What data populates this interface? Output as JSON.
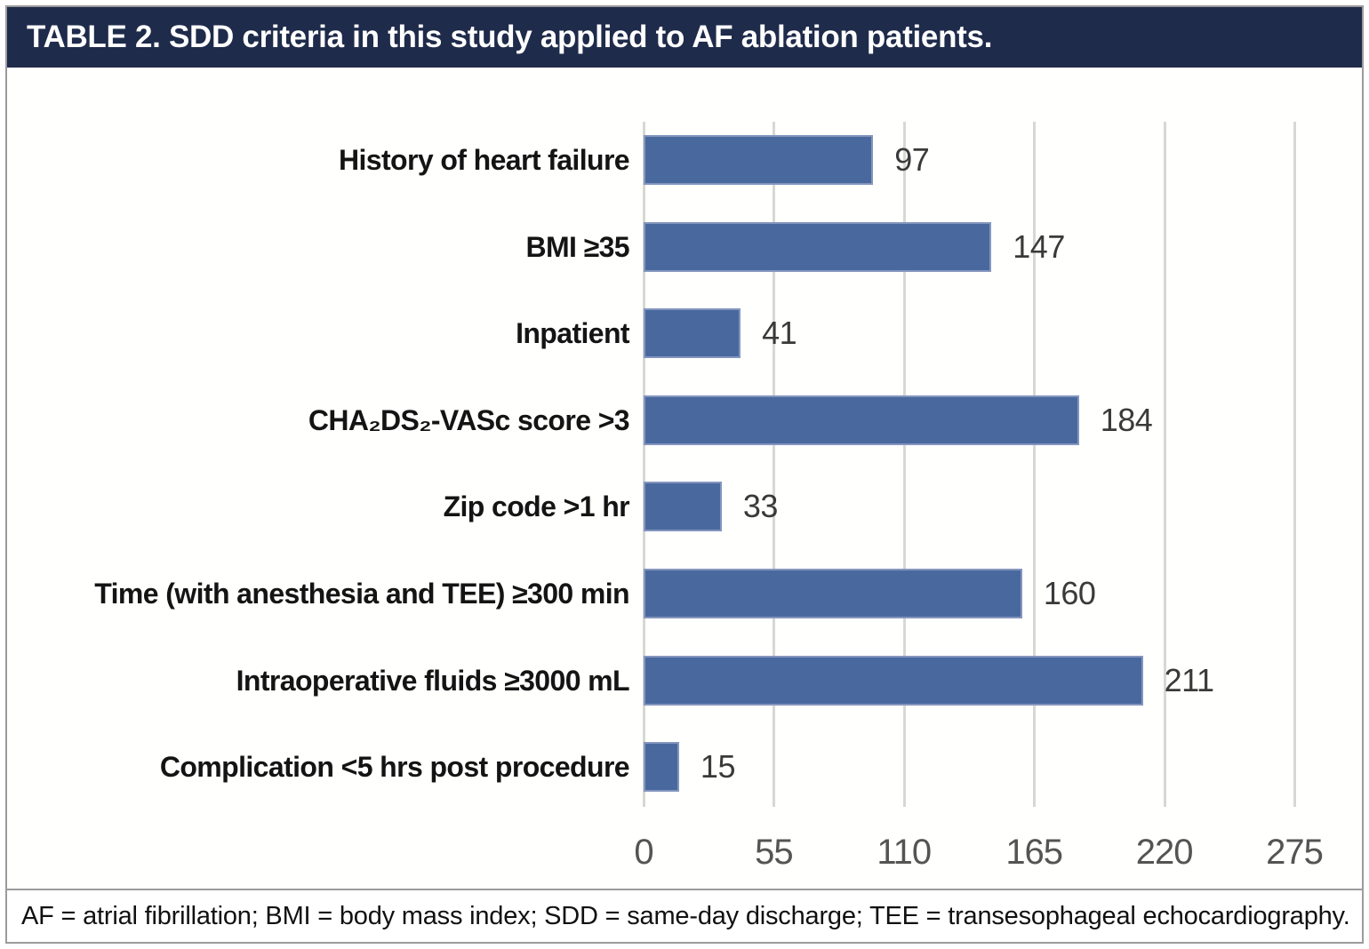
{
  "title": "TABLE 2. SDD criteria in this study applied to AF ablation patients.",
  "footnote": "AF = atrial fibrillation; BMI = body mass index; SDD = same-day discharge; TEE = transesophageal echocardiography.",
  "colors": {
    "title_bar_bg": "#1f2b4b",
    "title_text": "#ffffff",
    "bar_fill": "#49699e",
    "bar_border": "#8496be",
    "gridline": "#d8d8d3",
    "tick_text": "#545454",
    "value_text": "#3a3a3a",
    "category_text": "#141414",
    "frame_border": "#9b9b9b"
  },
  "chart_data": {
    "type": "bar",
    "orientation": "horizontal",
    "title": "TABLE 2. SDD criteria in this study applied to AF ablation patients.",
    "categories": [
      "History of heart failure",
      "BMI ≥35",
      "Inpatient",
      "CHA₂DS₂-VASc score >3",
      "Zip code >1 hr",
      "Time (with anesthesia and TEE) ≥300 min",
      "Intraoperative fluids ≥3000 mL",
      "Complication <5 hrs post procedure"
    ],
    "values": [
      97,
      147,
      41,
      184,
      33,
      160,
      211,
      15
    ],
    "data_labels": [
      97,
      147,
      41,
      184,
      33,
      160,
      211,
      15
    ],
    "x_ticks": [
      0,
      55,
      110,
      165,
      220,
      275
    ],
    "xlim": [
      0,
      275
    ],
    "xlabel": "",
    "ylabel": "",
    "grid": true,
    "legend": false
  }
}
